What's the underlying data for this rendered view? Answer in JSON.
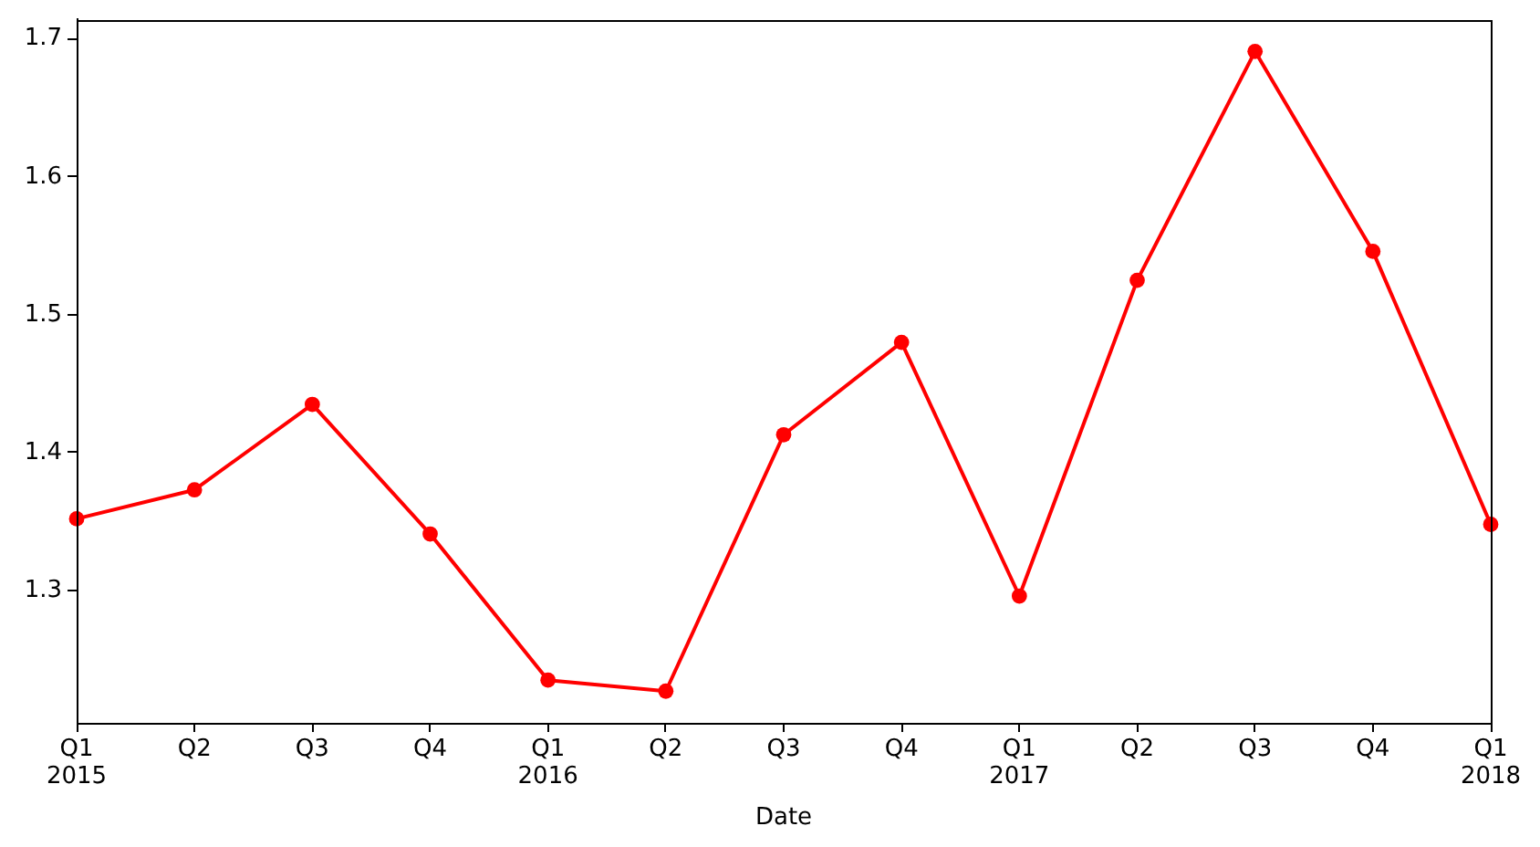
{
  "chart_data": {
    "type": "line",
    "xlabel": "Date",
    "categories": [
      "Q1\n2015",
      "Q2",
      "Q3",
      "Q4",
      "Q1\n2016",
      "Q2",
      "Q3",
      "Q4",
      "Q1\n2017",
      "Q2",
      "Q3",
      "Q4",
      "Q1\n2018"
    ],
    "series": [
      {
        "color": "#ff0000",
        "values": [
          1.352,
          1.373,
          1.435,
          1.341,
          1.235,
          1.227,
          1.413,
          1.48,
          1.296,
          1.525,
          1.691,
          1.546,
          1.348
        ]
      }
    ],
    "ylim": [
      1.204,
      1.714
    ],
    "yticks": [
      1.3,
      1.4,
      1.5,
      1.6,
      1.7
    ],
    "marker": "circle",
    "line_style": "solid"
  }
}
